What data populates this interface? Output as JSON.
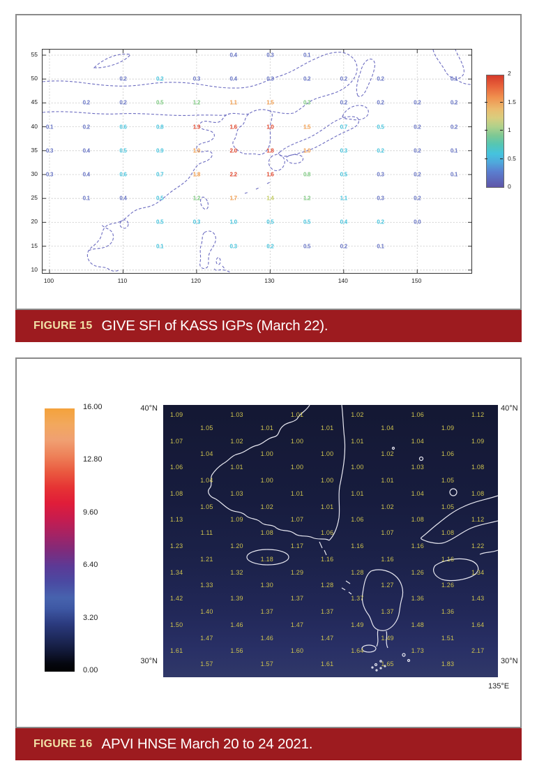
{
  "page": {
    "background": "#ffffff",
    "caption_bar_color": "#9D1B1F",
    "caption_label_color": "#F1E1A7"
  },
  "figure15": {
    "caption_label": "FIGURE 15",
    "caption_text": "GIVE SFI of KASS IGPs (March 22)."
  },
  "figure16": {
    "caption_label": "FIGURE 16",
    "caption_text": "APVI HNSE March 20 to 24 2021."
  },
  "chart_data": [
    {
      "type": "scatter",
      "title": "GIVE SFI of KASS IGPs (March 22)",
      "x_ticks": [
        "100",
        "110",
        "120",
        "130",
        "140",
        "150"
      ],
      "y_ticks": [
        "55",
        "50",
        "45",
        "40",
        "35",
        "30",
        "25",
        "20",
        "15",
        "10"
      ],
      "xlim": [
        99,
        157.3
      ],
      "ylim": [
        9.2,
        56.2
      ],
      "grid": true,
      "coastline_color": "#6b6bc0",
      "colorbar": {
        "position": "right",
        "ticks": [
          "2",
          "1.5",
          "1",
          "0.5",
          "0"
        ],
        "range": [
          0,
          2
        ],
        "style": "jet"
      },
      "palette": {
        "b": "#6673c4",
        "c": "#45c3dc",
        "g": "#7cc87f",
        "y": "#c2cc60",
        "o": "#f09a48",
        "r": "#e0452c"
      },
      "points": [
        [
          125,
          55,
          "0.4",
          "b"
        ],
        [
          130,
          55,
          "0.3",
          "b"
        ],
        [
          135,
          55,
          "0.1",
          "b"
        ],
        [
          110,
          50,
          "0.2",
          "b"
        ],
        [
          115,
          50,
          "0.2",
          "c"
        ],
        [
          120,
          50,
          "0.3",
          "b"
        ],
        [
          125,
          50,
          "0.4",
          "b"
        ],
        [
          130,
          50,
          "0.3",
          "b"
        ],
        [
          135,
          50,
          "0.2",
          "b"
        ],
        [
          140,
          50,
          "0.2",
          "b"
        ],
        [
          145,
          50,
          "0.2",
          "b"
        ],
        [
          155,
          50,
          "0.1",
          "b"
        ],
        [
          105,
          45,
          "0.2",
          "b"
        ],
        [
          110,
          45,
          "0.2",
          "b"
        ],
        [
          115,
          45,
          "0.5",
          "g"
        ],
        [
          120,
          45,
          "1.2",
          "g"
        ],
        [
          125,
          45,
          "1.1",
          "o"
        ],
        [
          130,
          45,
          "1.5",
          "o"
        ],
        [
          135,
          45,
          "0.3",
          "g"
        ],
        [
          140,
          45,
          "0.2",
          "b"
        ],
        [
          145,
          45,
          "0.2",
          "b"
        ],
        [
          150,
          45,
          "0.2",
          "b"
        ],
        [
          155,
          45,
          "0.2",
          "b"
        ],
        [
          100,
          40,
          "0.1",
          "b"
        ],
        [
          105,
          40,
          "0.2",
          "b"
        ],
        [
          110,
          40,
          "0.6",
          "c"
        ],
        [
          115,
          40,
          "0.8",
          "c"
        ],
        [
          120,
          40,
          "1.9",
          "r"
        ],
        [
          125,
          40,
          "1.6",
          "r"
        ],
        [
          130,
          40,
          "1.0",
          "r"
        ],
        [
          135,
          40,
          "1.5",
          "o"
        ],
        [
          140,
          40,
          "0.7",
          "c"
        ],
        [
          145,
          40,
          "0.5",
          "c"
        ],
        [
          150,
          40,
          "0.2",
          "b"
        ],
        [
          155,
          40,
          "0.2",
          "b"
        ],
        [
          100,
          35,
          "0.3",
          "b"
        ],
        [
          105,
          35,
          "0.4",
          "b"
        ],
        [
          110,
          35,
          "0.5",
          "c"
        ],
        [
          115,
          35,
          "0.9",
          "c"
        ],
        [
          120,
          35,
          "1.0",
          "o"
        ],
        [
          125,
          35,
          "2.0",
          "r"
        ],
        [
          130,
          35,
          "1.8",
          "r"
        ],
        [
          135,
          35,
          "1.0",
          "o"
        ],
        [
          140,
          35,
          "0.3",
          "c"
        ],
        [
          145,
          35,
          "0.2",
          "c"
        ],
        [
          150,
          35,
          "0.2",
          "b"
        ],
        [
          155,
          35,
          "0.1",
          "b"
        ],
        [
          100,
          30,
          "0.3",
          "b"
        ],
        [
          105,
          30,
          "0.4",
          "b"
        ],
        [
          110,
          30,
          "0.6",
          "c"
        ],
        [
          115,
          30,
          "0.7",
          "c"
        ],
        [
          120,
          30,
          "1.8",
          "o"
        ],
        [
          125,
          30,
          "2.2",
          "r"
        ],
        [
          130,
          30,
          "1.6",
          "r"
        ],
        [
          135,
          30,
          "0.8",
          "g"
        ],
        [
          140,
          30,
          "0.5",
          "c"
        ],
        [
          145,
          30,
          "0.3",
          "b"
        ],
        [
          150,
          30,
          "0.2",
          "b"
        ],
        [
          155,
          30,
          "0.1",
          "b"
        ],
        [
          105,
          25,
          "0.1",
          "b"
        ],
        [
          110,
          25,
          "0.4",
          "b"
        ],
        [
          115,
          25,
          "0.5",
          "c"
        ],
        [
          120,
          25,
          "1.2",
          "g"
        ],
        [
          125,
          25,
          "1.7",
          "o"
        ],
        [
          130,
          25,
          "1.4",
          "y"
        ],
        [
          135,
          25,
          "1.2",
          "g"
        ],
        [
          140,
          25,
          "1.1",
          "c"
        ],
        [
          145,
          25,
          "0.3",
          "b"
        ],
        [
          150,
          25,
          "0.2",
          "b"
        ],
        [
          115,
          20,
          "0.5",
          "c"
        ],
        [
          120,
          20,
          "0.3",
          "c"
        ],
        [
          125,
          20,
          "1.0",
          "c"
        ],
        [
          130,
          20,
          "0.5",
          "c"
        ],
        [
          135,
          20,
          "0.5",
          "c"
        ],
        [
          140,
          20,
          "0.4",
          "c"
        ],
        [
          145,
          20,
          "0.2",
          "c"
        ],
        [
          150,
          20,
          "0.0",
          "b"
        ],
        [
          115,
          15,
          "0.1",
          "c"
        ],
        [
          125,
          15,
          "0.3",
          "c"
        ],
        [
          130,
          15,
          "0.2",
          "c"
        ],
        [
          135,
          15,
          "0.5",
          "b"
        ],
        [
          140,
          15,
          "0.2",
          "b"
        ],
        [
          145,
          15,
          "0.1",
          "b"
        ]
      ]
    },
    {
      "type": "heatmap",
      "title": "APVI HNSE March 20 to 24 2021",
      "colorbar": {
        "position": "left",
        "ticks": [
          "16.00",
          "12.80",
          "9.60",
          "6.40",
          "3.20",
          "0.00"
        ],
        "range": [
          0,
          16
        ],
        "style": "black-blue-red-orange"
      },
      "labels": {
        "lat_top_left": "40°N",
        "lat_top_right": "40°N",
        "lat_bottom_left": "30°N",
        "lat_bottom_right": "30°N",
        "lon_bottom_right": "135°E"
      },
      "value_color": "#cdc24e",
      "rows": [
        [
          "1.09",
          "1.03",
          "1.01",
          "1.02",
          "1.06",
          "1.12"
        ],
        [
          "1.05",
          "1.01",
          "1.01",
          "1.04",
          "1.09"
        ],
        [
          "1.07",
          "1.02",
          "1.00",
          "1.01",
          "1.04",
          "1.09"
        ],
        [
          "1.04",
          "1.00",
          "1.00",
          "1.02",
          "1.06"
        ],
        [
          "1.06",
          "1.01",
          "1.00",
          "1.00",
          "1.03",
          "1.08"
        ],
        [
          "1.04",
          "1.00",
          "1.00",
          "1.01",
          "1.05"
        ],
        [
          "1.08",
          "1.03",
          "1.01",
          "1.01",
          "1.04",
          "1.08"
        ],
        [
          "1.05",
          "1.02",
          "1.01",
          "1.02",
          "1.05"
        ],
        [
          "1.13",
          "1.09",
          "1.07",
          "1.06",
          "1.08",
          "1.12"
        ],
        [
          "1.11",
          "1.08",
          "1.06",
          "1.07",
          "1.08"
        ],
        [
          "1.23",
          "1.20",
          "1.17",
          "1.16",
          "1.16",
          "1.22"
        ],
        [
          "1.21",
          "1.18",
          "1.16",
          "1.16",
          "1.16"
        ],
        [
          "1.34",
          "1.32",
          "1.29",
          "1.28",
          "1.26",
          "1.34"
        ],
        [
          "1.33",
          "1.30",
          "1.28",
          "1.27",
          "1.26"
        ],
        [
          "1.42",
          "1.39",
          "1.37",
          "1.37",
          "1.36",
          "1.43"
        ],
        [
          "1.40",
          "1.37",
          "1.37",
          "1.37",
          "1.36"
        ],
        [
          "1.50",
          "1.46",
          "1.47",
          "1.49",
          "1.48",
          "1.64"
        ],
        [
          "1.47",
          "1.46",
          "1.47",
          "1.49",
          "1.51"
        ],
        [
          "1.61",
          "1.56",
          "1.60",
          "1.64",
          "1.73",
          "2.17"
        ],
        [
          "1.57",
          "1.57",
          "1.61",
          "1.65",
          "1.83"
        ]
      ]
    }
  ]
}
